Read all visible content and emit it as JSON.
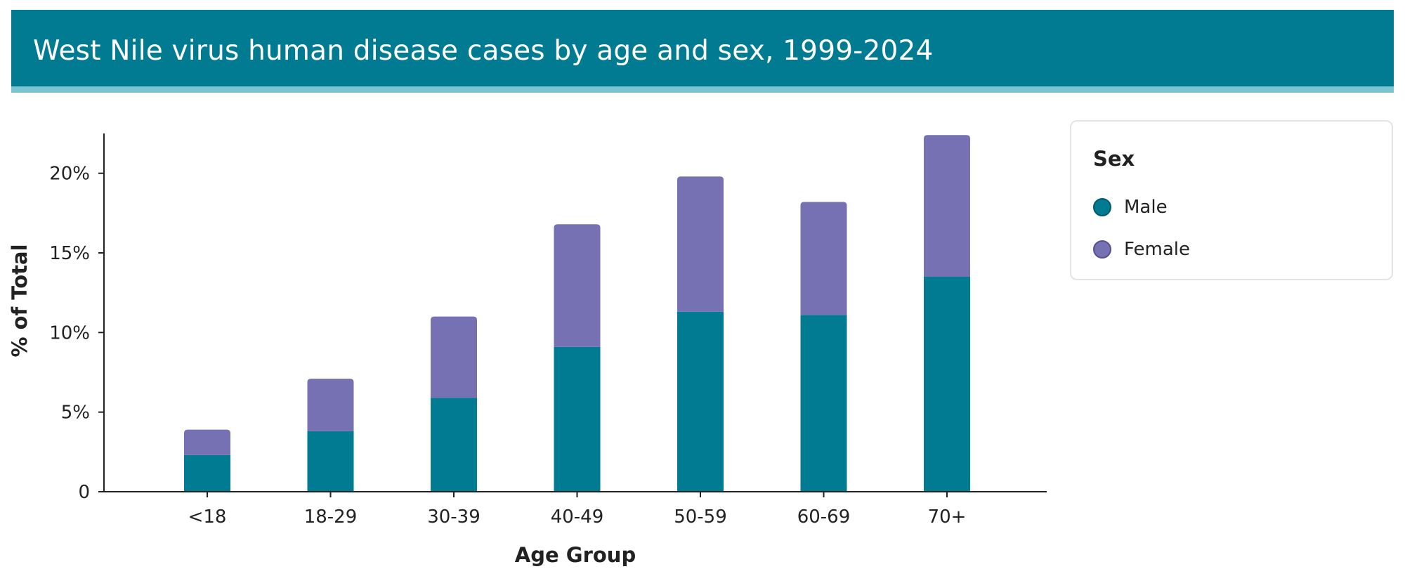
{
  "header": {
    "title": "West Nile virus human disease cases by age and sex, 1999-2024"
  },
  "legend": {
    "title": "Sex",
    "items": [
      {
        "label": "Male",
        "color": "#007b91",
        "border": "#005b6d"
      },
      {
        "label": "Female",
        "color": "#7671b3",
        "border": "#55518f"
      }
    ]
  },
  "chart_data": {
    "type": "bar",
    "stacked": true,
    "title": "West Nile virus human disease cases by age and sex, 1999-2024",
    "xlabel": "Age Group",
    "ylabel": "% of Total",
    "categories": [
      "<18",
      "18-29",
      "30-39",
      "40-49",
      "50-59",
      "60-69",
      "70+"
    ],
    "series": [
      {
        "name": "Male",
        "color": "#007b91",
        "values": [
          2.3,
          3.8,
          5.9,
          9.1,
          11.3,
          11.1,
          13.5
        ]
      },
      {
        "name": "Female",
        "color": "#7671b3",
        "values": [
          1.6,
          3.3,
          5.1,
          7.7,
          8.5,
          7.1,
          8.9
        ]
      }
    ],
    "ylim": [
      0,
      22.5
    ],
    "yticks": [
      {
        "value": 0,
        "label": "0"
      },
      {
        "value": 5,
        "label": "5%"
      },
      {
        "value": 10,
        "label": "10%"
      },
      {
        "value": 15,
        "label": "15%"
      },
      {
        "value": 20,
        "label": "20%"
      }
    ],
    "grid": false,
    "legend_position": "right"
  }
}
